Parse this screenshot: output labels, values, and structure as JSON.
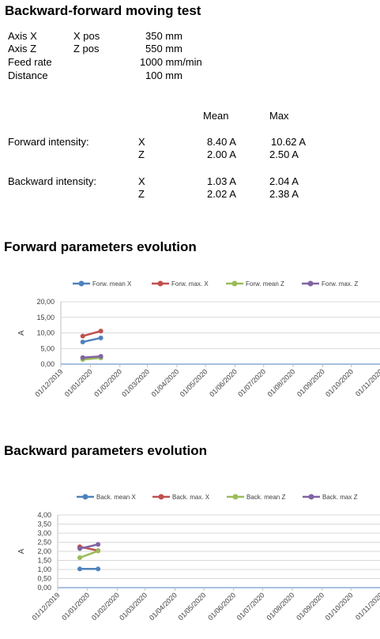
{
  "test": {
    "title": "Backward-forward moving test",
    "params": [
      {
        "label": "Axis X",
        "sub": "X pos",
        "value": "350 mm"
      },
      {
        "label": "Axis Z",
        "sub": "Z pos",
        "value": "550 mm"
      },
      {
        "label": "Feed rate",
        "sub": "",
        "value": "1000 mm/min"
      },
      {
        "label": "Distance",
        "sub": "",
        "value": "100 mm"
      }
    ],
    "col_mean": "Mean",
    "col_max": "Max",
    "forward": {
      "label": "Forward intensity:",
      "rows": [
        {
          "axis": "X",
          "mean": "8.40 A",
          "max": "10.62 A"
        },
        {
          "axis": "Z",
          "mean": "2.00 A",
          "max": "2.50 A"
        }
      ]
    },
    "backward": {
      "label": "Backward intensity:",
      "rows": [
        {
          "axis": "X",
          "mean": "1.03 A",
          "max": "2.04 A"
        },
        {
          "axis": "Z",
          "mean": "2.02 A",
          "max": "2.38 A"
        }
      ]
    }
  },
  "sections": {
    "forward_title": "Forward parameters evolution",
    "backward_title": "Backward parameters evolution"
  },
  "chart_data": [
    {
      "type": "line",
      "ylabel": "A",
      "ylim": [
        0,
        20
      ],
      "yticks": [
        "0,00",
        "5,00",
        "10,00",
        "15,00",
        "20,00"
      ],
      "ytick_values": [
        0,
        5,
        10,
        15,
        20
      ],
      "xticks": [
        "01/12/2019",
        "01/01/2020",
        "01/02/2020",
        "01/03/2020",
        "01/04/2020",
        "01/05/2020",
        "01/06/2020",
        "01/07/2020",
        "01/08/2020",
        "01/09/2020",
        "01/10/2020",
        "01/11/2020"
      ],
      "x": [
        "2019-12-24",
        "2020-01-12"
      ],
      "legend": "top",
      "grid": true,
      "series": [
        {
          "name": "Forw. mean X",
          "color": "#4f81bd",
          "values": [
            7.1,
            8.4
          ]
        },
        {
          "name": "Forw. max. X",
          "color": "#c0504d",
          "values": [
            9.0,
            10.6
          ]
        },
        {
          "name": "Forw. mean Z",
          "color": "#9bbb59",
          "values": [
            1.5,
            2.0
          ]
        },
        {
          "name": "Forw. max. Z",
          "color": "#8064a2",
          "values": [
            2.1,
            2.5
          ]
        }
      ]
    },
    {
      "type": "line",
      "ylabel": "A",
      "ylim": [
        0,
        4
      ],
      "yticks": [
        "0,00",
        "0,50",
        "1,00",
        "1,50",
        "2,00",
        "2,50",
        "3,00",
        "3,50",
        "4,00"
      ],
      "ytick_values": [
        0,
        0.5,
        1,
        1.5,
        2,
        2.5,
        3,
        3.5,
        4
      ],
      "xticks": [
        "01/12/2019",
        "01/01/2020",
        "01/02/2020",
        "01/03/2020",
        "01/04/2020",
        "01/05/2020",
        "01/06/2020",
        "01/07/2020",
        "01/08/2020",
        "01/09/2020",
        "01/10/2020",
        "01/11/2020"
      ],
      "x": [
        "2019-12-24",
        "2020-01-12"
      ],
      "legend": "top",
      "grid": true,
      "series": [
        {
          "name": "Back. mean X",
          "color": "#4f81bd",
          "values": [
            1.03,
            1.03
          ]
        },
        {
          "name": "Back. max. X",
          "color": "#c0504d",
          "values": [
            2.25,
            2.04
          ]
        },
        {
          "name": "Back. mean Z",
          "color": "#9bbb59",
          "values": [
            1.65,
            2.02
          ]
        },
        {
          "name": "Back. max Z",
          "color": "#8064a2",
          "values": [
            2.15,
            2.38
          ]
        }
      ]
    }
  ]
}
